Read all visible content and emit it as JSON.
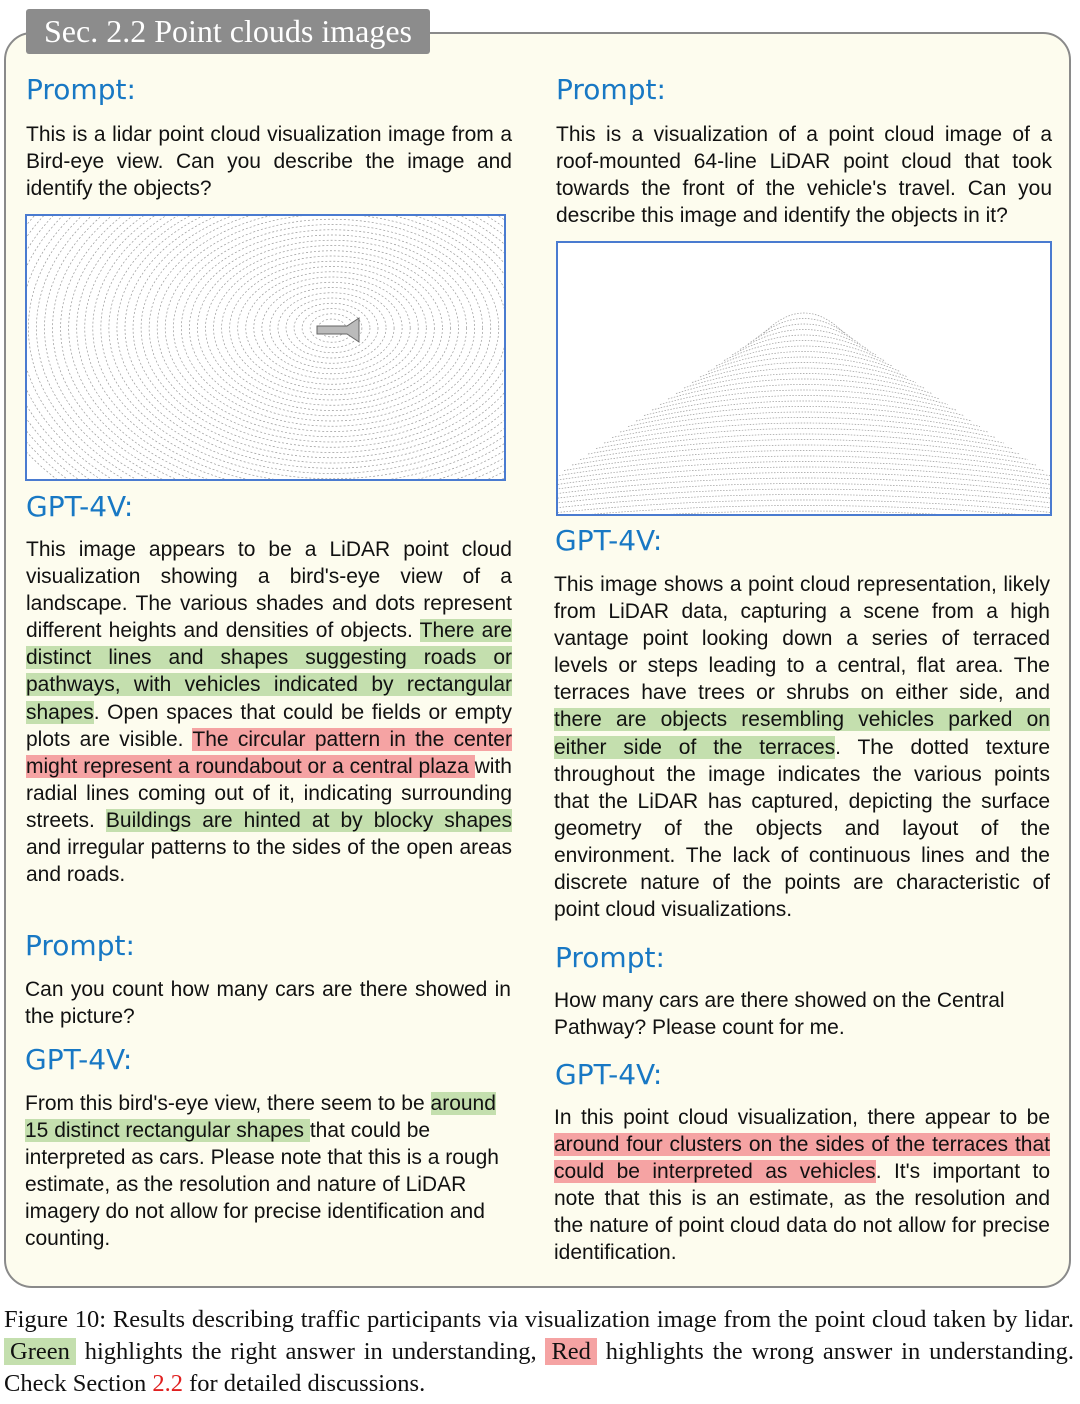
{
  "section_title": "Sec. 2.2 Point clouds images",
  "colors": {
    "heading": "#1878c4",
    "green_highlight": "#c4dfae",
    "red_highlight": "#f5a3a3",
    "frame_bg": "#fdfcee",
    "image_border": "#4a7bd0"
  },
  "left": {
    "prompt1_label": "Prompt:",
    "prompt1": [
      {
        "t": "This is a lidar point cloud visualization image from a Bird-eye view. Can you describe the image and identify the objects?",
        "h": ""
      }
    ],
    "image1_icon": "lidar-birds-eye-image",
    "answer1_label": "GPT-4V:",
    "answer1": [
      {
        "t": "This image appears to be a LiDAR point cloud visualization showing a bird's-eye view of a landscape. The various shades and dots represent different heights and densities of objects. ",
        "h": ""
      },
      {
        "t": "There are distinct lines and shapes suggesting roads or pathways, with vehicles indicated by rectangular shapes",
        "h": "g"
      },
      {
        "t": ". Open spaces that could be fields or empty plots are visible. ",
        "h": ""
      },
      {
        "t": "The circular pattern in the center might represent a roundabout or a central plaza ",
        "h": "r"
      },
      {
        "t": "with radial lines coming out of it, indicating surrounding streets. ",
        "h": ""
      },
      {
        "t": "Buildings are hinted at by blocky shapes",
        "h": "g"
      },
      {
        "t": " and irregular patterns to the sides of the open areas and roads.",
        "h": ""
      }
    ],
    "prompt2_label": "Prompt:",
    "prompt2": [
      {
        "t": "Can you count how many cars are there showed in the picture?",
        "h": ""
      }
    ],
    "answer2_label": "GPT-4V:",
    "answer2": [
      {
        "t": "From this bird's-eye view, there seem to be ",
        "h": ""
      },
      {
        "t": "around 15 distinct rectangular shapes ",
        "h": "g"
      },
      {
        "t": "that could be interpreted as cars. Please note that this is a rough estimate, as the resolution and nature of LiDAR imagery do not allow for precise identification and counting.",
        "h": ""
      }
    ]
  },
  "right": {
    "prompt1_label": "Prompt:",
    "prompt1": [
      {
        "t": "This is a visualization of a point cloud image of a roof-mounted 64-line LiDAR point cloud that took towards the front of the vehicle's travel. Can you describe this image and identify the objects in it?",
        "h": ""
      }
    ],
    "image1_icon": "lidar-front-view-image",
    "answer1_label": "GPT-4V:",
    "answer1": [
      {
        "t": "This image shows a point cloud representation, likely from LiDAR data, capturing a scene from a high vantage point looking down a series of terraced levels or steps leading to a central, flat area. The terraces have trees or shrubs on either side, and ",
        "h": ""
      },
      {
        "t": "there are objects resembling vehicles parked on either side of the terraces",
        "h": "g"
      },
      {
        "t": ". The dotted texture throughout the image indicates the various points that the LiDAR has captured, depicting the surface geometry of the objects and layout of the environment. The lack of continuous lines and the discrete nature of the points are characteristic of point cloud visualizations.",
        "h": ""
      }
    ],
    "prompt2_label": "Prompt:",
    "prompt2": [
      {
        "t": "How many cars are there showed on the Central Pathway? Please count for me.",
        "h": ""
      }
    ],
    "answer2_label": "GPT-4V:",
    "answer2": [
      {
        "t": "In this point cloud visualization, there appear to be ",
        "h": ""
      },
      {
        "t": "around four clusters on the sides of the terraces that could be interpreted as vehicles",
        "h": "r"
      },
      {
        "t": ". It's important to note that this is an estimate, as the resolution and the nature of point cloud data do not allow for precise identification.",
        "h": ""
      }
    ]
  },
  "caption": {
    "part1": "Figure 10: Results describing traffic participants via visualization image from the point cloud taken by lidar. ",
    "green": "Green",
    "part2": " highlights the right answer in understanding, ",
    "red": "Red",
    "part3": " highlights the wrong answer in understanding. Check Section ",
    "ref": "2.2",
    "part4": " for detailed discussions."
  }
}
